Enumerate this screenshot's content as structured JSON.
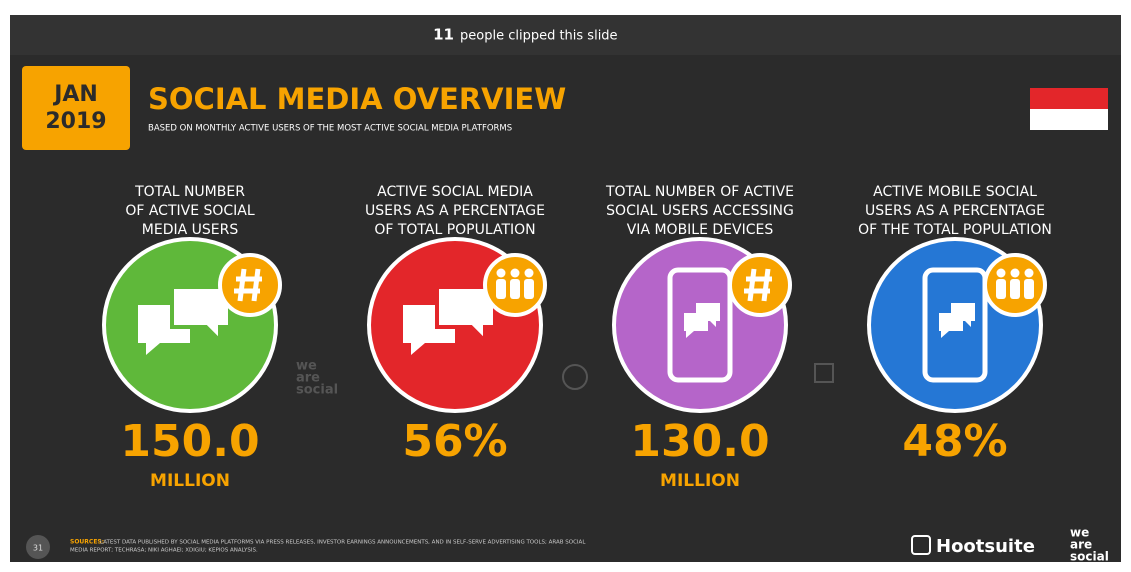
{
  "top_bar": {
    "count": "11",
    "text": "people clipped this slide"
  },
  "slide": {
    "date": {
      "month": "JAN",
      "year": "2019"
    },
    "title": "SOCIAL MEDIA OVERVIEW",
    "subtitle": "BASED ON MONTHLY ACTIVE USERS OF THE MOST ACTIVE SOCIAL MEDIA PLATFORMS",
    "stats": [
      {
        "label_lines": [
          "TOTAL NUMBER",
          "OF ACTIVE SOCIAL",
          "MEDIA USERS"
        ],
        "value": "150.0",
        "unit": "MILLION"
      },
      {
        "label_lines": [
          "ACTIVE SOCIAL MEDIA",
          "USERS AS A PERCENTAGE",
          "OF TOTAL POPULATION"
        ],
        "value": "56%"
      },
      {
        "label_lines": [
          "TOTAL NUMBER OF ACTIVE",
          "SOCIAL USERS ACCESSING",
          "VIA MOBILE DEVICES"
        ],
        "value": "130.0",
        "unit": "MILLION"
      },
      {
        "label_lines": [
          "ACTIVE MOBILE SOCIAL",
          "USERS AS A PERCENTAGE",
          "OF THE TOTAL POPULATION"
        ],
        "value": "48%"
      }
    ],
    "watermark": [
      "we",
      "are",
      "social"
    ],
    "footer": {
      "page": "31",
      "source_label": "SOURCES:",
      "source_lines": [
        "LATEST DATA PUBLISHED BY SOCIAL MEDIA PLATFORMS VIA PRESS RELEASES, INVESTOR EARNINGS ANNOUNCEMENTS, AND IN SELF-SERVE ADVERTISING TOOLS; ARAB SOCIAL",
        "MEDIA REPORT; TECHRASA; NIKI AGHAEI; XDIGIU; KEPIOS ANALYSIS."
      ],
      "brand": "Hootsuite",
      "brand2": [
        "we",
        "are",
        "social"
      ]
    }
  }
}
